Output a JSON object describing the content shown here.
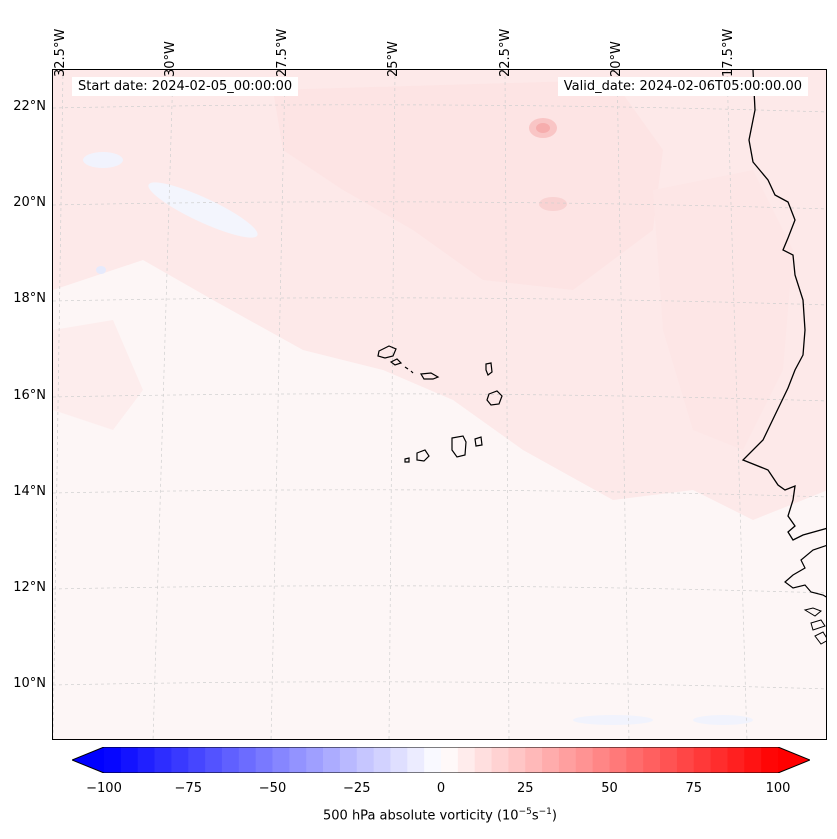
{
  "header": {
    "start_date": "Start date: 2024-02-05_00:00:00",
    "valid_date": "Valid_date: 2024-02-06T05:00:00.00"
  },
  "map": {
    "projection": "conic",
    "background_color": "#fdf6f6",
    "coastline_color": "#000000",
    "gridline_style": "dashed light grey",
    "longitude_labels": [
      "32.5°W",
      "30°W",
      "27.5°W",
      "25°W",
      "22.5°W",
      "20°W",
      "17.5°W"
    ],
    "latitude_labels": [
      "22°N",
      "20°N",
      "18°N",
      "16°N",
      "14°N",
      "12°N",
      "10°N"
    ],
    "features": [
      "Cape Verde Islands",
      "West African coastline"
    ]
  },
  "colorbar": {
    "cmap": "bwr",
    "min": -100,
    "max": 100,
    "ticks": [
      "−100",
      "−75",
      "−50",
      "−25",
      "0",
      "25",
      "50",
      "75",
      "100"
    ],
    "label_main": "500 hPa absolute vorticity (10",
    "label_exp1": "−5",
    "label_mid": "s",
    "label_exp2": "−1",
    "label_end": ")"
  }
}
